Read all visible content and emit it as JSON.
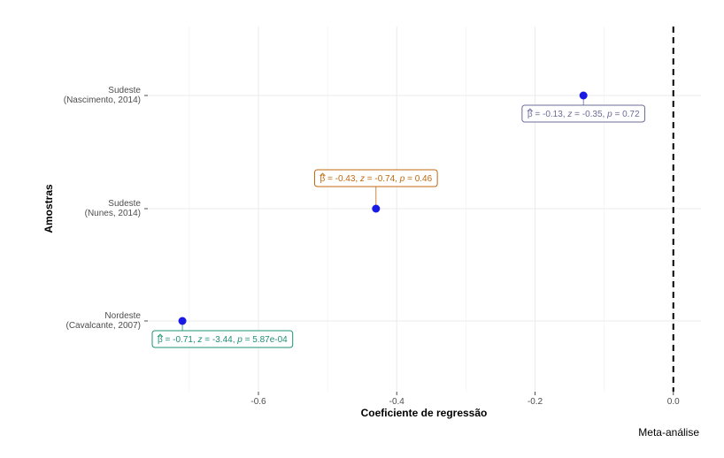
{
  "chart_data": {
    "type": "scatter",
    "xlabel": "Coeficiente de regressão",
    "ylabel": "Amostras",
    "caption": "Meta-análise",
    "xlim": [
      -0.76,
      0.04
    ],
    "xticks": [
      -0.6,
      -0.4,
      -0.2,
      0.0
    ],
    "xtick_labels": [
      "-0.6",
      "-0.4",
      "-0.2",
      "0.0"
    ],
    "grid": true,
    "reference_line": {
      "x": 0.0,
      "style": "dashed"
    },
    "point_color": "#1a1ae6",
    "categories": [
      {
        "line1": "Sudeste",
        "line2": "(Nascimento, 2014)"
      },
      {
        "line1": "Sudeste",
        "line2": "(Nunes, 2014)"
      },
      {
        "line1": "Nordeste",
        "line2": "(Cavalcante, 2007)"
      }
    ],
    "points": [
      {
        "category_index": 0,
        "x": -0.13,
        "label": {
          "beta": "-0.13",
          "z": "-0.35",
          "p": "0.72",
          "color": "#6b6b9a",
          "placement": "below"
        }
      },
      {
        "category_index": 1,
        "x": -0.43,
        "label": {
          "beta": "-0.43",
          "z": "-0.74",
          "p": "0.46",
          "color": "#c0680f",
          "placement": "above"
        }
      },
      {
        "category_index": 2,
        "x": -0.71,
        "label": {
          "beta": "-0.71",
          "z": "-3.44",
          "p": "5.87e-04",
          "color": "#1f8f74",
          "placement": "below"
        }
      }
    ]
  }
}
